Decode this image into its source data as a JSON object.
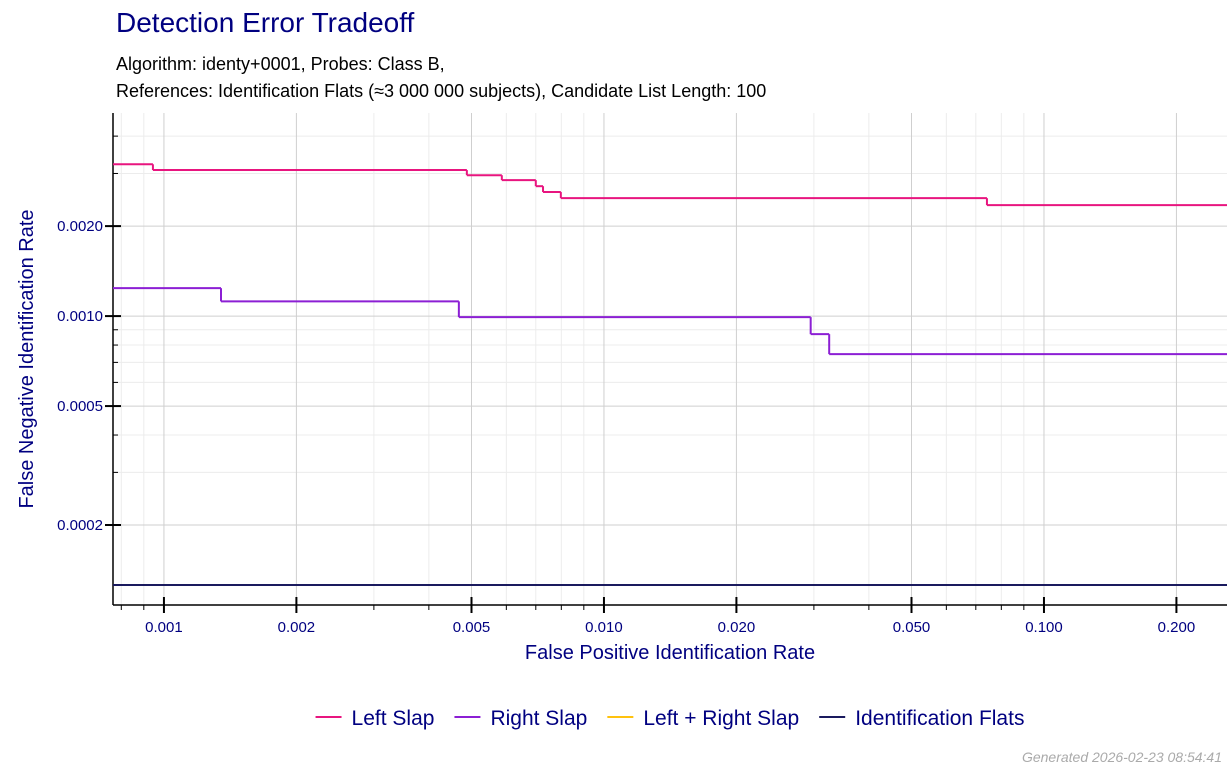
{
  "chart_data": {
    "type": "step",
    "title": "Detection Error Tradeoff",
    "subtitle": [
      "Algorithm: identy+0001, Probes: Class B,",
      "References: Identification Flats (≈3 000 000 subjects), Candidate List Length: 100"
    ],
    "xlabel": "False Positive Identification Rate",
    "ylabel": "False Negative Identification Rate",
    "xscale": "log",
    "yscale": "log",
    "grid": true,
    "legend": "bottom",
    "xlim": [
      0.000766,
      0.2606
    ],
    "ylim": [
      0.000108,
      0.00478
    ],
    "xticks": [
      0.001,
      0.002,
      0.005,
      {
        "value": 0.01,
        "label": "0.010"
      },
      {
        "value": 0.02,
        "label": "0.020"
      },
      {
        "value": 0.05,
        "label": "0.050"
      },
      {
        "value": 0.1,
        "label": "0.100"
      },
      {
        "value": 0.2,
        "label": "0.200"
      }
    ],
    "yticks": [
      {
        "value": 0.0002,
        "label": "0.0002"
      },
      {
        "value": 0.0005,
        "label": "0.0005"
      },
      {
        "value": 0.001,
        "label": "0.0010"
      },
      {
        "value": 0.002,
        "label": "0.0020"
      }
    ],
    "xminorticks": [
      0.0008,
      0.0009,
      0.003,
      0.004,
      0.006,
      0.007,
      0.008,
      0.009,
      0.03,
      0.04,
      0.06,
      0.07,
      0.08,
      0.09
    ],
    "yminorticks": [
      0.0003,
      0.0004,
      0.0006,
      0.0007,
      0.0008,
      0.0009,
      0.003,
      0.004
    ],
    "series": [
      {
        "name": "Left Slap",
        "color": "#e8157f",
        "x": [
          0.000766,
          0.000944,
          0.00488,
          0.00586,
          0.007,
          0.00727,
          0.00798,
          0.0742
        ],
        "values": [
          0.00322,
          0.00308,
          0.00296,
          0.00285,
          0.00272,
          0.0026,
          0.00248,
          0.00235
        ]
      },
      {
        "name": "Right Slap",
        "color": "#8c1fd4",
        "x": [
          0.000766,
          0.001348,
          0.00468,
          0.0295,
          0.0325
        ],
        "values": [
          0.00124,
          0.00112,
          0.000992,
          0.00087,
          0.000746
        ]
      },
      {
        "name": "Left + Right Slap",
        "color": "#ffc20e",
        "x": [],
        "values": []
      },
      {
        "name": "Identification Flats",
        "color": "#1a1a5e",
        "x": [
          0.000766
        ],
        "values": [
          0.000126
        ]
      }
    ],
    "footer": "Generated 2026-02-23 08:54:41"
  }
}
